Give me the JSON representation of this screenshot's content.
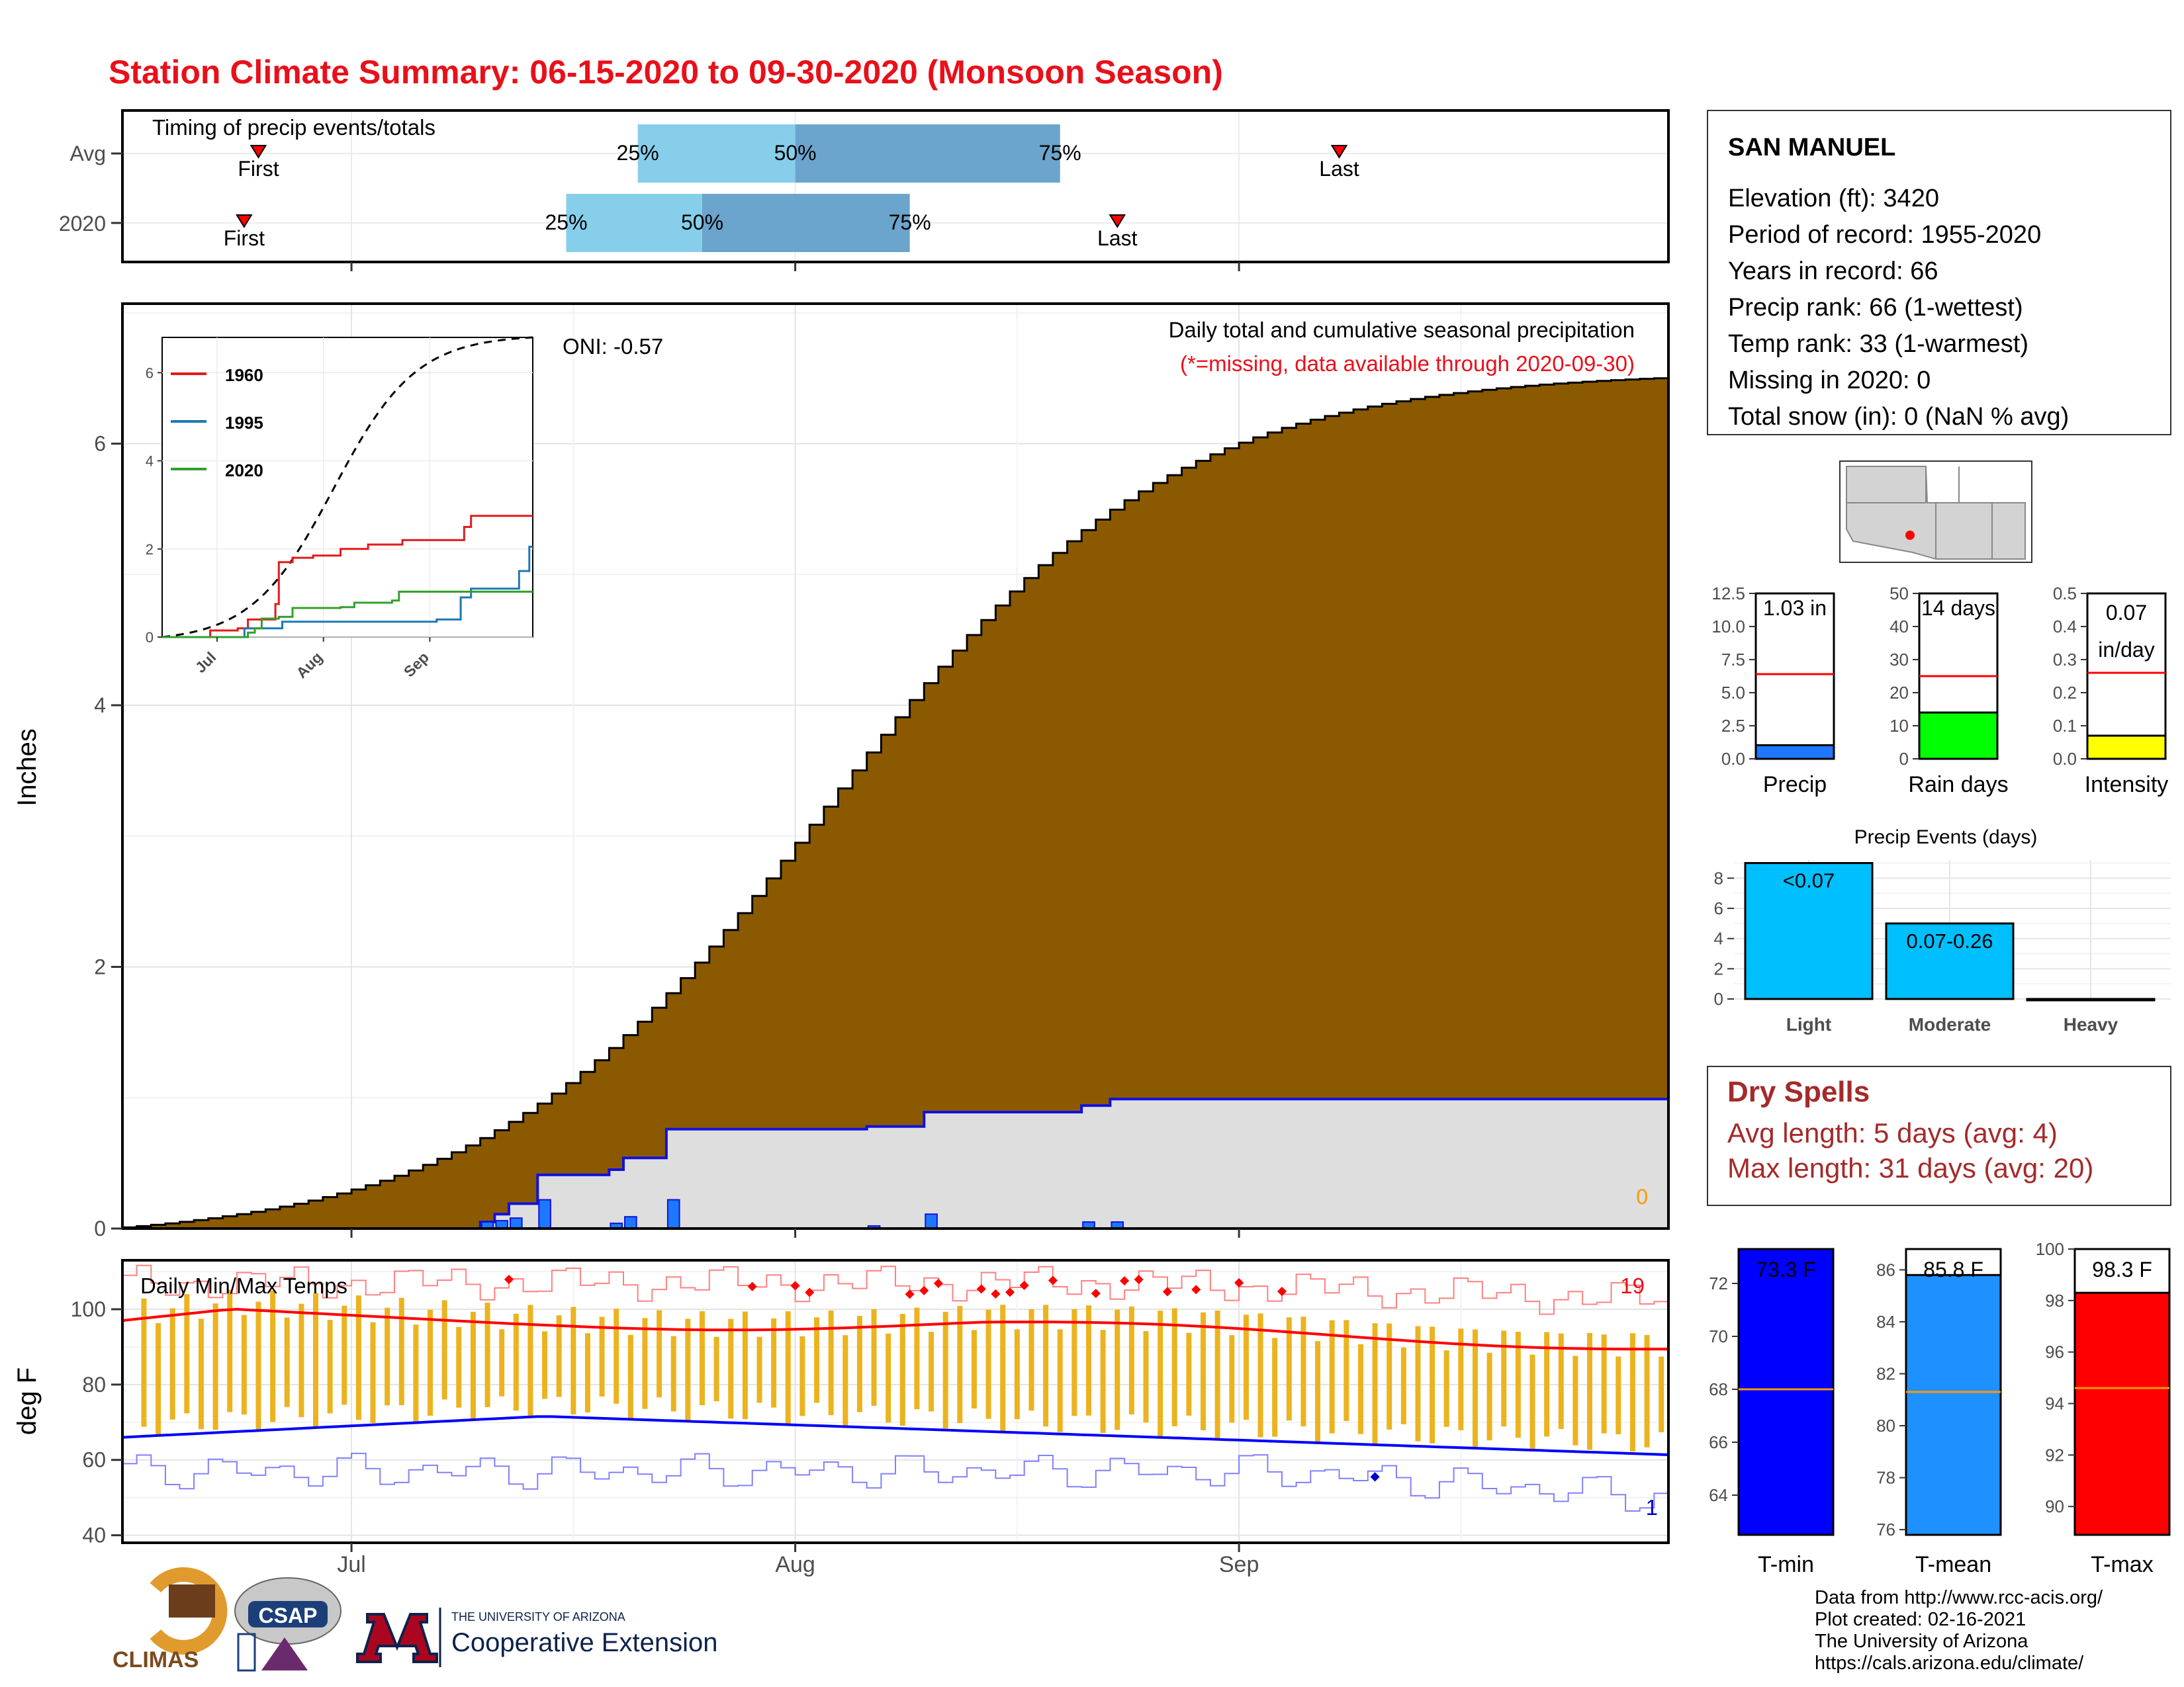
{
  "title": "Station Climate Summary: 06-15-2020 to 09-30-2020 (Monsoon Season)",
  "colors": {
    "title": "#e8101a",
    "accum": "#8b5a00",
    "cur_fill": "#dedede",
    "cur_line": "#1111dd",
    "bar": "#1e78ff",
    "tmin": "#0000ff",
    "tmax": "#ff0000",
    "range": "#ebb31f",
    "q_light": "#87ceeb",
    "q_dark": "#6ba4cc",
    "dry": "#a52a2a"
  },
  "x_axis": {
    "ticks": [
      "Jul",
      "Aug",
      "Sep"
    ]
  },
  "timing": {
    "title": "Timing of precip events/totals",
    "rows": [
      {
        "label": "Avg",
        "first": {
          "day": 9.5,
          "label": "First"
        },
        "q25": 36,
        "q50": 47,
        "q75": 65.5,
        "last": {
          "day": 85,
          "label": "Last"
        }
      },
      {
        "label": "2020",
        "first": {
          "day": 8.5,
          "label": "First"
        },
        "q25": 31,
        "q50": 40.5,
        "q75": 55,
        "last": {
          "day": 69.5,
          "label": "Last"
        }
      }
    ],
    "qlabels": [
      "25%",
      "50%",
      "75%"
    ]
  },
  "precip": {
    "ylabel": "Inches",
    "header": "Daily total and cumulative seasonal precipitation",
    "note": "(*=missing, data available through 2020-09-30)",
    "oni": "ONI: -0.57",
    "missing_count": "0",
    "y_ticks": [
      "0",
      "2",
      "4",
      "6"
    ],
    "avg_end": 6.5,
    "cur_total": 1.03,
    "daily_2020": [
      [
        25,
        0.05
      ],
      [
        26,
        0.06
      ],
      [
        27,
        0.08
      ],
      [
        29,
        0.22
      ],
      [
        34,
        0.04
      ],
      [
        35,
        0.09
      ],
      [
        38,
        0.22
      ],
      [
        52,
        0.02
      ],
      [
        56,
        0.11
      ],
      [
        67,
        0.05
      ],
      [
        69,
        0.05
      ]
    ]
  },
  "inset": {
    "y_ticks": [
      "0",
      "2",
      "4",
      "6"
    ],
    "x_ticks": [
      "Jul",
      "Aug",
      "Sep"
    ],
    "legend": [
      {
        "name": "1960",
        "color": "#e31a1c"
      },
      {
        "name": "1995",
        "color": "#1f78b4"
      },
      {
        "name": "2020",
        "color": "#33a02c"
      }
    ]
  },
  "temps": {
    "ylabel": "deg F",
    "title": "Daily Min/Max Temps",
    "record_high_count": "19",
    "record_low_count": "1",
    "y_ticks": [
      "40",
      "60",
      "80",
      "100"
    ]
  },
  "station": {
    "name": "SAN MANUEL",
    "lines": [
      "Elevation (ft): 3420",
      "Period of record: 1955-2020",
      "Years in record: 66",
      "Precip rank: 66 (1-wettest)",
      "Temp rank: 33 (1-warmest)",
      "Missing in 2020: 0",
      "Total snow (in): 0 (NaN % avg)"
    ]
  },
  "mini": [
    {
      "label": "Precip",
      "value_text": "1.03 in",
      "value": 1.03,
      "avg": 6.4,
      "max": 12.5,
      "color": "#1e78ff",
      "ticks": [
        "0.0",
        "2.5",
        "5.0",
        "7.5",
        "10.0",
        "12.5"
      ]
    },
    {
      "label": "Rain days",
      "value_text": "14 days",
      "value": 14,
      "avg": 25,
      "max": 50,
      "color": "#00ff00",
      "ticks": [
        "0",
        "10",
        "20",
        "30",
        "40",
        "50"
      ]
    },
    {
      "label": "Intensity",
      "value_text": "0.07",
      "value_text2": "in/day",
      "value": 0.07,
      "avg": 0.26,
      "max": 0.5,
      "color": "#ffff00",
      "ticks": [
        "0.0",
        "0.1",
        "0.2",
        "0.3",
        "0.4",
        "0.5"
      ]
    }
  ],
  "events": {
    "title": "Precip Events (days)",
    "categories": [
      "Light",
      "Moderate",
      "Heavy"
    ],
    "bar_labels": [
      "<0.07",
      "0.07-0.26",
      ""
    ],
    "values": [
      9,
      5,
      0
    ],
    "ticks": [
      "0",
      "2",
      "4",
      "6",
      "8"
    ]
  },
  "dry": {
    "title": "Dry Spells",
    "line1": "Avg length: 5 days (avg: 4)",
    "line2": "Max length: 31 days (avg: 20)"
  },
  "tbars": [
    {
      "label": "T-min",
      "value_text": "73.3 F",
      "value": 73.3,
      "avg": 68,
      "min": 62.5,
      "max": 73.3,
      "color": "#0000ff",
      "ticks": [
        "64",
        "66",
        "68",
        "70",
        "72"
      ]
    },
    {
      "label": "T-mean",
      "value_text": "85.8 F",
      "value": 85.8,
      "avg": 81.3,
      "min": 75.8,
      "max": 86.8,
      "color": "#1e90ff",
      "ticks": [
        "76",
        "78",
        "80",
        "82",
        "84",
        "86"
      ]
    },
    {
      "label": "T-max",
      "value_text": "98.3 F",
      "value": 98.3,
      "avg": 94.6,
      "min": 88.9,
      "max": 100,
      "color": "#ff0000",
      "ticks": [
        "90",
        "92",
        "94",
        "96",
        "98",
        "100"
      ]
    }
  ],
  "logos": {
    "climas": "CLIMAS",
    "csap": "CSAP",
    "ua_line1": "THE UNIVERSITY OF ARIZONA",
    "ua_line2": "Cooperative Extension"
  },
  "credits": [
    "Data from http://www.rcc-acis.org/",
    "Plot created: 02-16-2021",
    "The University of Arizona",
    "https://cals.arizona.edu/climate/"
  ],
  "chart_data": [
    {
      "type": "bar",
      "title": "Timing of precip events/totals",
      "categories": [
        "Avg",
        "2020"
      ],
      "series": [
        {
          "name": "25%",
          "values": [
            "Jul 21",
            "Jul 16"
          ]
        },
        {
          "name": "50%",
          "values": [
            "Aug 1",
            "Jul 25"
          ]
        },
        {
          "name": "75%",
          "values": [
            "Aug 19",
            "Aug 9"
          ]
        }
      ]
    },
    {
      "type": "area",
      "title": "Daily total and cumulative seasonal precipitation",
      "ylabel": "Inches",
      "ylim": [
        0,
        7
      ],
      "series": [
        {
          "values_end": 6.5
        },
        {
          "values_end": 1.03
        }
      ]
    },
    {
      "type": "line",
      "title": "Daily Min/Max Temps",
      "ylabel": "deg F",
      "ylim": [
        38,
        113
      ]
    },
    {
      "type": "bar",
      "categories": [
        "Precip",
        "Rain days",
        "Intensity"
      ],
      "values": [
        1.03,
        14,
        0.07
      ]
    },
    {
      "type": "bar",
      "title": "Precip Events (days)",
      "categories": [
        "Light",
        "Moderate",
        "Heavy"
      ],
      "values": [
        9,
        5,
        0
      ]
    },
    {
      "type": "bar",
      "categories": [
        "T-min",
        "T-mean",
        "T-max"
      ],
      "values": [
        73.3,
        85.8,
        98.3
      ]
    }
  ]
}
